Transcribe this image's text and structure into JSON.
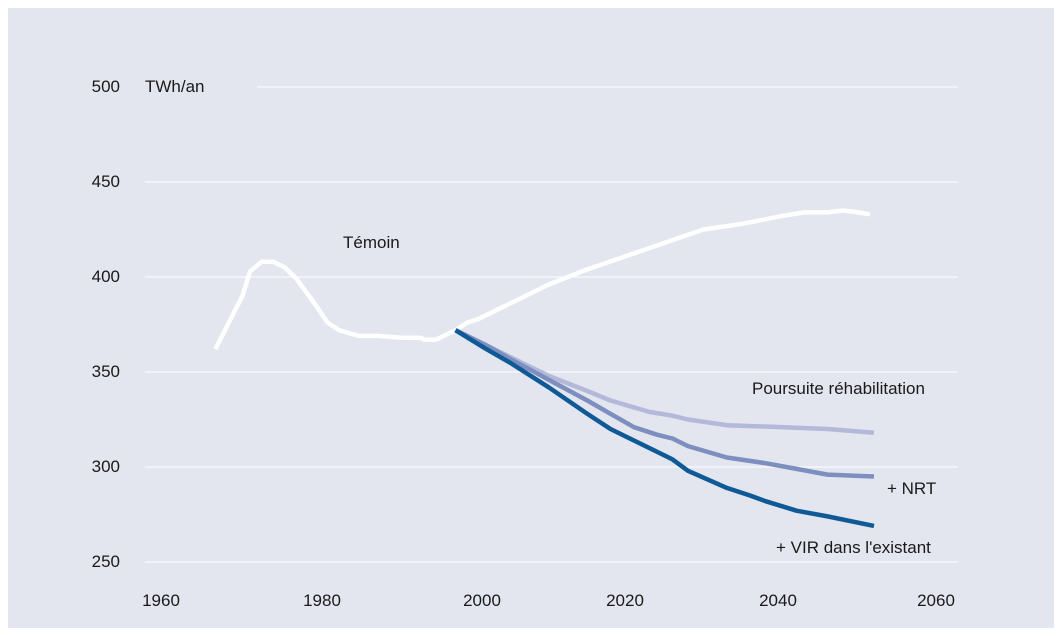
{
  "chart_data": {
    "type": "line",
    "unit_label": "TWh/an",
    "ylim": [
      250,
      500
    ],
    "xlim": [
      1960,
      2060
    ],
    "yticks": [
      "500",
      "450",
      "400",
      "350",
      "300",
      "250"
    ],
    "xticks": [
      "1960",
      "1980",
      "2000",
      "2020",
      "2040",
      "2060"
    ],
    "grid": true,
    "colors": {
      "background": "#e3e5ef",
      "grid": "#ffffff",
      "temoin": "#ffffff",
      "poursuite": "#b3b9d9",
      "nrt": "#7d8fbf",
      "vir": "#0f5a96"
    },
    "series": [
      {
        "name": "Témoin",
        "color_key": "temoin",
        "points": [
          [
            1967,
            362
          ],
          [
            1968.5,
            374
          ],
          [
            1970.5,
            390
          ],
          [
            1971.5,
            403
          ],
          [
            1973,
            408
          ],
          [
            1974.5,
            408
          ],
          [
            1976,
            405
          ],
          [
            1977.5,
            399
          ],
          [
            1980,
            385
          ],
          [
            1981.5,
            376
          ],
          [
            1983,
            372
          ],
          [
            1985.5,
            369
          ],
          [
            1988,
            369
          ],
          [
            1991,
            368
          ],
          [
            1993.5,
            368
          ],
          [
            1994,
            367
          ],
          [
            1995.5,
            367
          ],
          [
            1996.5,
            369
          ],
          [
            1998,
            372
          ],
          [
            1999.5,
            376
          ],
          [
            2001,
            378
          ],
          [
            2005,
            386
          ],
          [
            2010,
            396
          ],
          [
            2015,
            404
          ],
          [
            2020,
            411
          ],
          [
            2025,
            418
          ],
          [
            2030,
            425
          ],
          [
            2035,
            428
          ],
          [
            2040,
            432
          ],
          [
            2043,
            434
          ],
          [
            2046,
            434
          ],
          [
            2048,
            435
          ],
          [
            2050,
            434
          ],
          [
            2051.5,
            433
          ]
        ]
      },
      {
        "name": "Poursuite réhabilitation",
        "color_key": "poursuite",
        "points": [
          [
            1998,
            372
          ],
          [
            2002,
            364
          ],
          [
            2005,
            358
          ],
          [
            2010,
            348
          ],
          [
            2015,
            340
          ],
          [
            2018,
            335
          ],
          [
            2023,
            329
          ],
          [
            2026,
            327
          ],
          [
            2028,
            325
          ],
          [
            2033,
            322
          ],
          [
            2040,
            321
          ],
          [
            2046,
            320
          ],
          [
            2052,
            318
          ]
        ]
      },
      {
        "name": "+ NRT",
        "color_key": "nrt",
        "points": [
          [
            1998,
            372
          ],
          [
            2002,
            364
          ],
          [
            2005,
            357
          ],
          [
            2010,
            346
          ],
          [
            2015,
            335
          ],
          [
            2018,
            328
          ],
          [
            2021,
            321
          ],
          [
            2024,
            317
          ],
          [
            2026,
            315
          ],
          [
            2028,
            311
          ],
          [
            2033,
            305
          ],
          [
            2038,
            302
          ],
          [
            2042,
            299
          ],
          [
            2046,
            296
          ],
          [
            2052,
            295
          ]
        ]
      },
      {
        "name": "+ VIR dans l'existant",
        "color_key": "vir",
        "points": [
          [
            1998,
            372
          ],
          [
            2002,
            362
          ],
          [
            2005,
            355
          ],
          [
            2010,
            342
          ],
          [
            2015,
            328
          ],
          [
            2018,
            320
          ],
          [
            2020,
            316
          ],
          [
            2023,
            310
          ],
          [
            2026,
            304
          ],
          [
            2028,
            298
          ],
          [
            2033,
            289
          ],
          [
            2036,
            285
          ],
          [
            2038,
            282
          ],
          [
            2042,
            277
          ],
          [
            2046,
            274
          ],
          [
            2052,
            269
          ]
        ]
      }
    ],
    "annotations": [
      "Témoin",
      "Poursuite réhabilitation",
      "+ NRT",
      "+ VIR dans l'existant"
    ]
  }
}
